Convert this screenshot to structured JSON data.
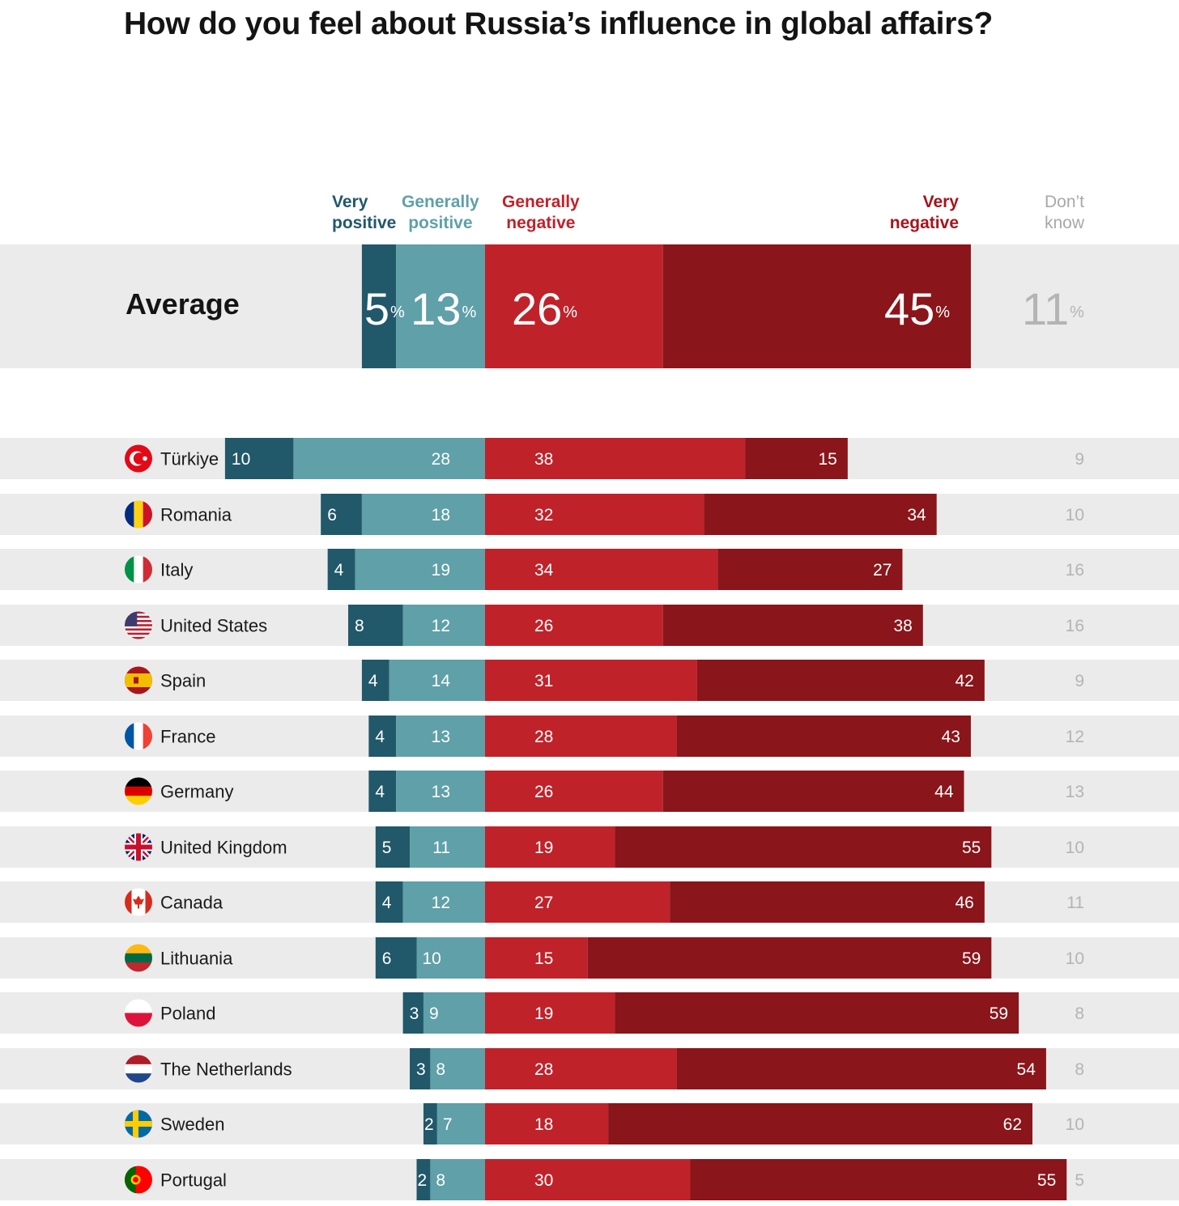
{
  "chart_data": {
    "type": "bar",
    "stacked": true,
    "diverging": true,
    "title": "How do you feel about Russia’s influence in global affairs?",
    "legend": [
      "Very\npositive",
      "Generally\npositive",
      "Generally\nnegative",
      "Very\nnegative",
      "Don’t\nknow"
    ],
    "series": [
      {
        "name": "Very positive",
        "color": "#21586a"
      },
      {
        "name": "Generally positive",
        "color": "#5fa0a9"
      },
      {
        "name": "Generally negative",
        "color": "#c0222a"
      },
      {
        "name": "Very negative",
        "color": "#8a151a"
      },
      {
        "name": "Don’t know",
        "color": "#b4b4b4"
      }
    ],
    "average": {
      "label": "Average",
      "values": [
        5,
        13,
        26,
        45,
        11
      ],
      "unit": "%"
    },
    "rows": [
      {
        "country": "Türkiye",
        "flag": "turkey-flag-icon",
        "values": [
          10,
          28,
          38,
          15,
          9
        ]
      },
      {
        "country": "Romania",
        "flag": "romania-flag-icon",
        "values": [
          6,
          18,
          32,
          34,
          10
        ]
      },
      {
        "country": "Italy",
        "flag": "italy-flag-icon",
        "values": [
          4,
          19,
          34,
          27,
          16
        ]
      },
      {
        "country": "United States",
        "flag": "usa-flag-icon",
        "values": [
          8,
          12,
          26,
          38,
          16
        ]
      },
      {
        "country": "Spain",
        "flag": "spain-flag-icon",
        "values": [
          4,
          14,
          31,
          42,
          9
        ]
      },
      {
        "country": "France",
        "flag": "france-flag-icon",
        "values": [
          4,
          13,
          28,
          43,
          12
        ]
      },
      {
        "country": "Germany",
        "flag": "germany-flag-icon",
        "values": [
          4,
          13,
          26,
          44,
          13
        ]
      },
      {
        "country": "United Kingdom",
        "flag": "uk-flag-icon",
        "values": [
          5,
          11,
          19,
          55,
          10
        ]
      },
      {
        "country": "Canada",
        "flag": "canada-flag-icon",
        "values": [
          4,
          12,
          27,
          46,
          11
        ]
      },
      {
        "country": "Lithuania",
        "flag": "lithuania-flag-icon",
        "values": [
          6,
          10,
          15,
          59,
          10
        ]
      },
      {
        "country": "Poland",
        "flag": "poland-flag-icon",
        "values": [
          3,
          9,
          19,
          59,
          8
        ]
      },
      {
        "country": "The Netherlands",
        "flag": "netherlands-flag-icon",
        "values": [
          3,
          8,
          28,
          54,
          8
        ]
      },
      {
        "country": "Sweden",
        "flag": "sweden-flag-icon",
        "values": [
          2,
          7,
          18,
          62,
          10
        ]
      },
      {
        "country": "Portugal",
        "flag": "portugal-flag-icon",
        "values": [
          2,
          8,
          30,
          55,
          5
        ]
      }
    ]
  }
}
